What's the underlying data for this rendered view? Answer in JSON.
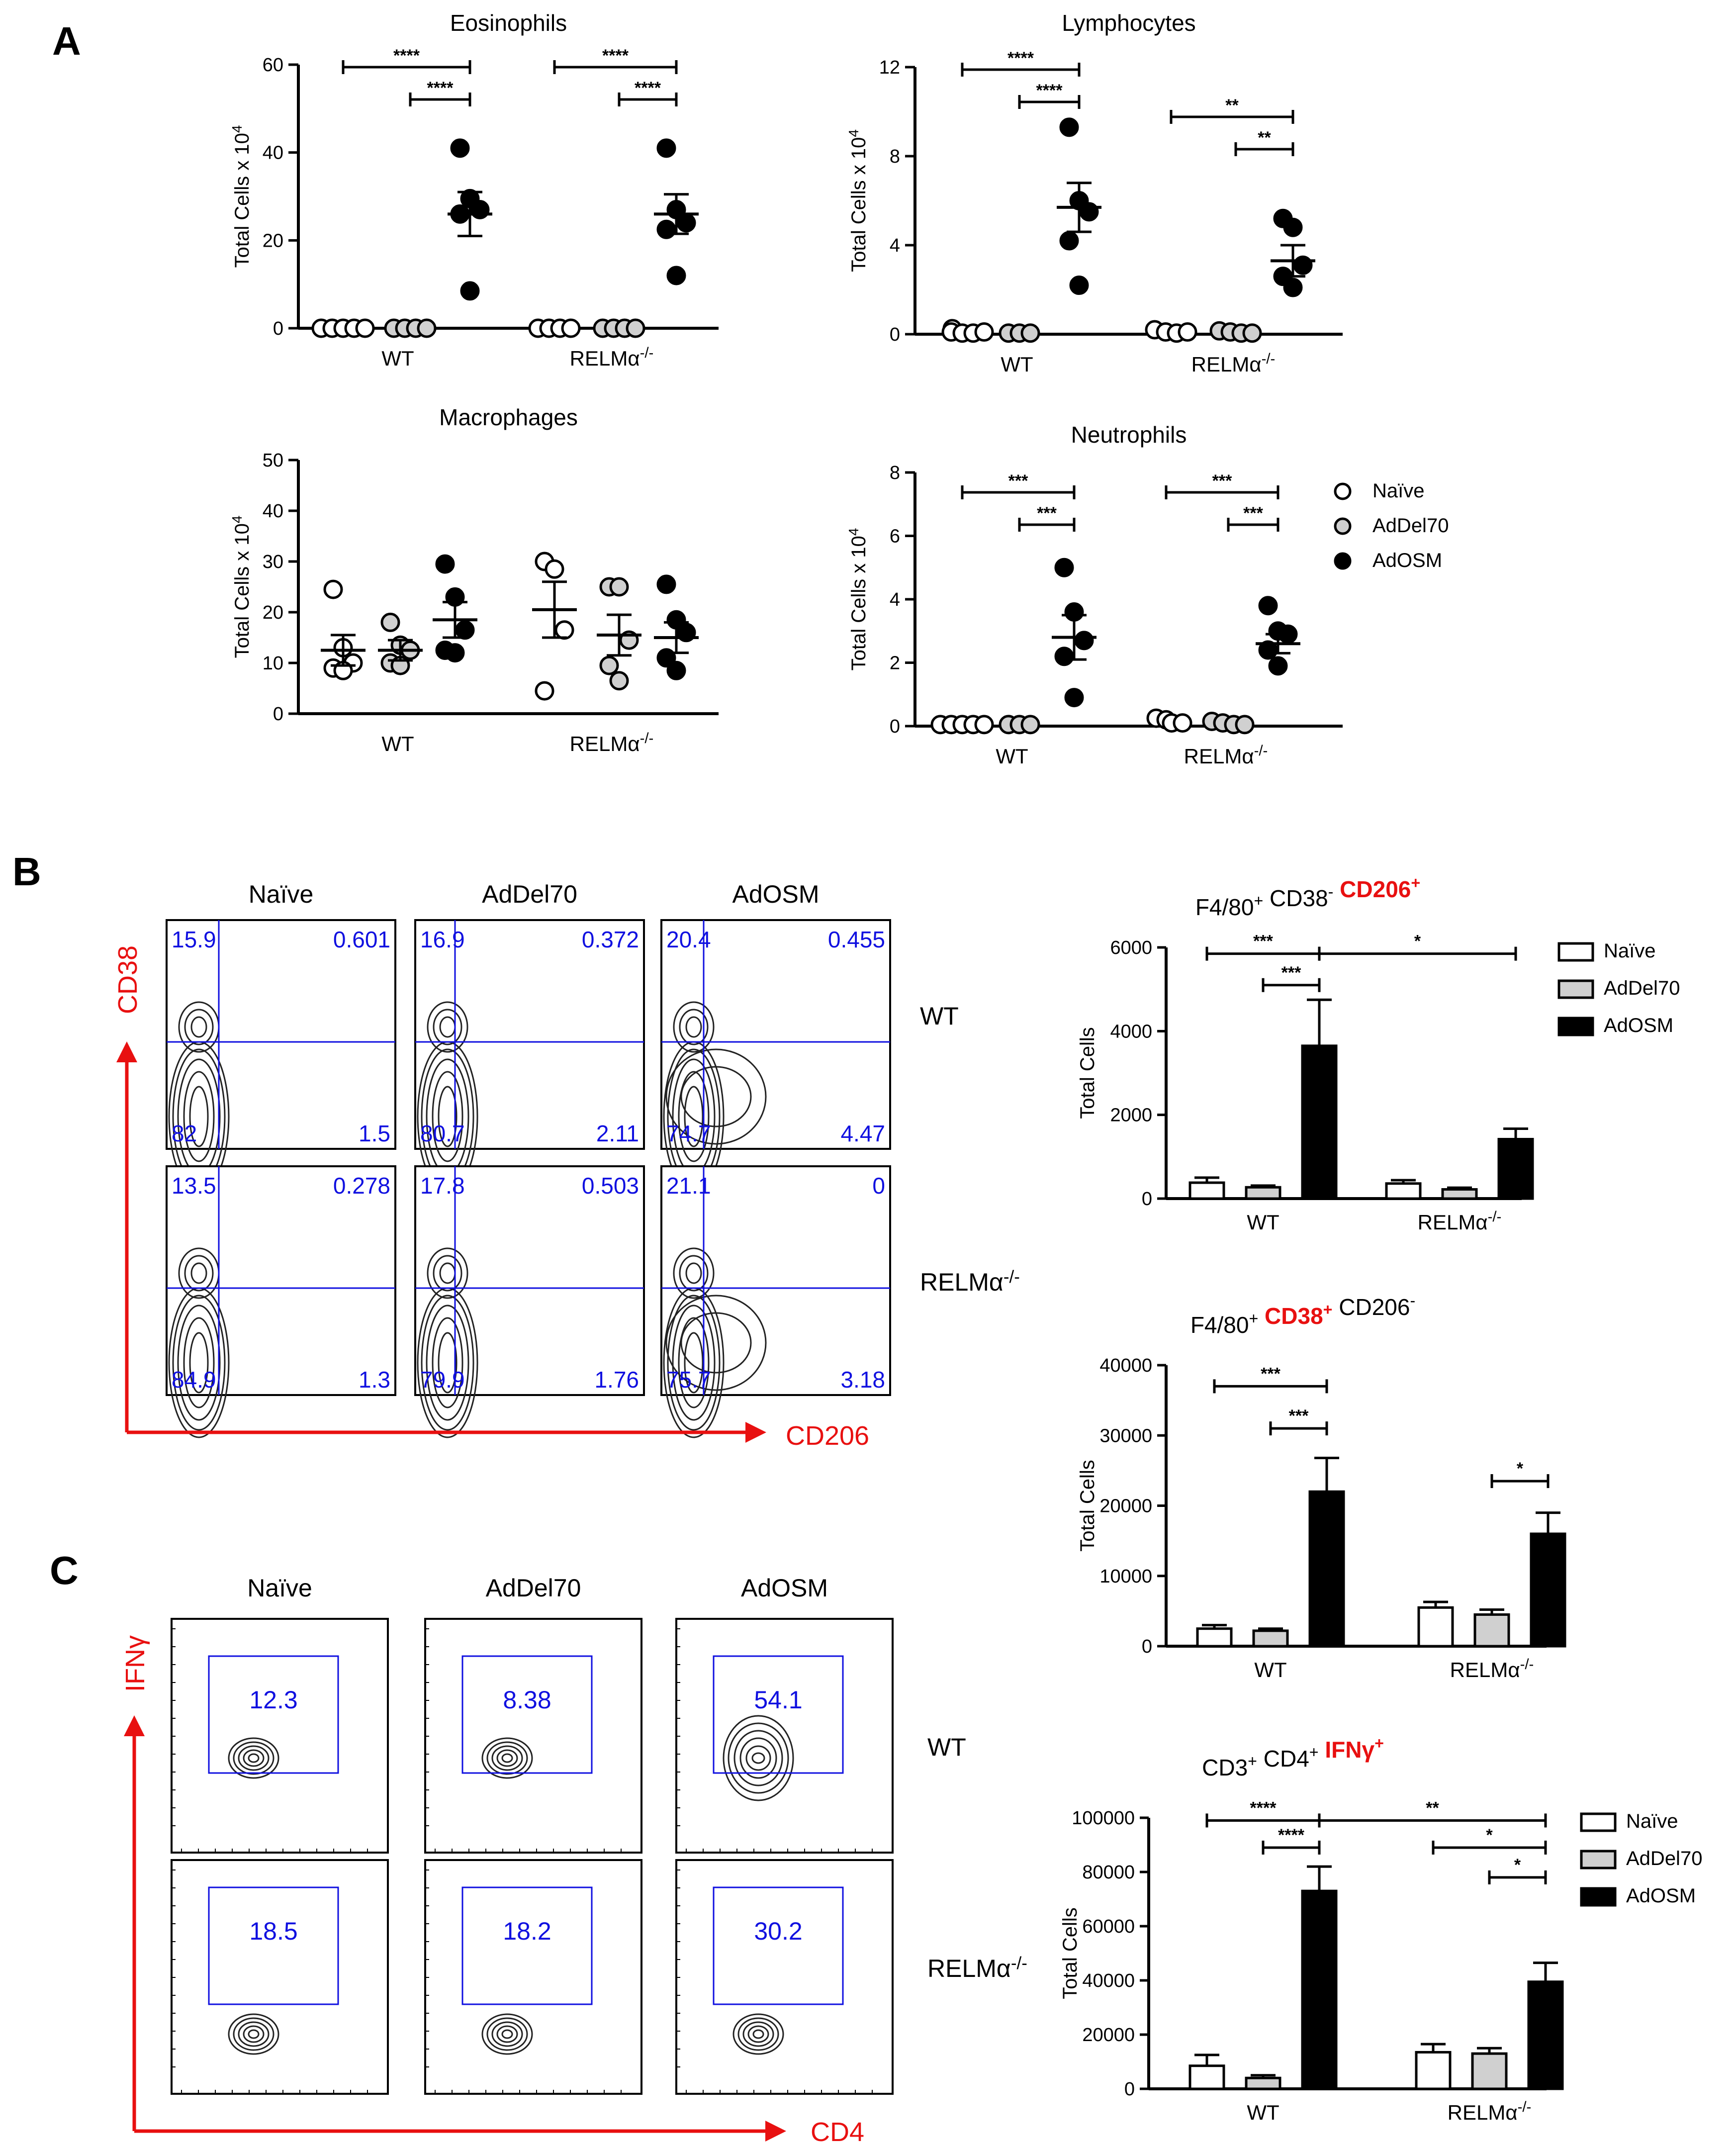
{
  "panel_labels": [
    "A",
    "B",
    "C"
  ],
  "colors": {
    "naive": "#ffffff",
    "addel70": "#d0d0d0",
    "adosm": "#000000",
    "flow_text": "#1010e0",
    "flow_axis": "#e81010"
  },
  "legend_A": [
    "Naïve",
    "AdDel70",
    "AdOSM"
  ],
  "chart_data": [
    {
      "id": "eosinophils",
      "type": "scatter",
      "title": "Eosinophils",
      "ylabel": "Total Cells x 10",
      "ylabel_sup": "4",
      "ylim": [
        0,
        60
      ],
      "yticks": [
        "0",
        "20",
        "40",
        "60"
      ],
      "groups": [
        "WT",
        "RELMα-/-"
      ],
      "series": [
        {
          "group": 0,
          "cond": "naive",
          "points": [
            0,
            0,
            0,
            0,
            0
          ],
          "mean": 0,
          "sem": 0
        },
        {
          "group": 0,
          "cond": "addel70",
          "points": [
            0,
            0,
            0,
            0
          ],
          "mean": 0,
          "sem": 0
        },
        {
          "group": 0,
          "cond": "adosm",
          "points": [
            41,
            29.5,
            27,
            26,
            8.5
          ],
          "mean": 26,
          "sem": 5
        },
        {
          "group": 1,
          "cond": "naive",
          "points": [
            0,
            0,
            0,
            0
          ],
          "mean": 0,
          "sem": 0
        },
        {
          "group": 1,
          "cond": "addel70",
          "points": [
            0,
            0,
            0,
            0
          ],
          "mean": 0,
          "sem": 0
        },
        {
          "group": 1,
          "cond": "adosm",
          "points": [
            41,
            27,
            24,
            22.5,
            12
          ],
          "mean": 26,
          "sem": 4.5
        }
      ],
      "sig": [
        {
          "group": 0,
          "from": 0,
          "to": 2,
          "label": "****",
          "level": 0
        },
        {
          "group": 0,
          "from": 1,
          "to": 2,
          "label": "****",
          "level": 1
        },
        {
          "group": 1,
          "from": 0,
          "to": 2,
          "label": "****",
          "level": 0
        },
        {
          "group": 1,
          "from": 1,
          "to": 2,
          "label": "****",
          "level": 1
        }
      ]
    },
    {
      "id": "lymphocytes",
      "type": "scatter",
      "title": "Lymphocytes",
      "ylabel": "Total Cells x 10",
      "ylabel_sup": "4",
      "ylim": [
        0,
        12
      ],
      "yticks": [
        "0",
        "4",
        "8",
        "12"
      ],
      "groups": [
        "WT",
        "RELMα-/-"
      ],
      "series": [
        {
          "group": 0,
          "cond": "naive",
          "points": [
            0.25,
            0.1,
            0.05,
            0.05,
            0.1
          ],
          "mean": 0.1,
          "sem": 0.05
        },
        {
          "group": 0,
          "cond": "addel70",
          "points": [
            0.05,
            0.05,
            0.05
          ],
          "mean": 0.05,
          "sem": 0
        },
        {
          "group": 0,
          "cond": "adosm",
          "points": [
            9.3,
            6.0,
            5.5,
            4.2,
            2.2
          ],
          "mean": 5.7,
          "sem": 1.1
        },
        {
          "group": 1,
          "cond": "naive",
          "points": [
            0.2,
            0.1,
            0.05,
            0.1
          ],
          "mean": 0.1,
          "sem": 0.05
        },
        {
          "group": 1,
          "cond": "addel70",
          "points": [
            0.15,
            0.1,
            0.05,
            0.05
          ],
          "mean": 0.1,
          "sem": 0.05
        },
        {
          "group": 1,
          "cond": "adosm",
          "points": [
            5.2,
            4.8,
            3.1,
            2.6,
            2.1
          ],
          "mean": 3.3,
          "sem": 0.7
        }
      ],
      "sig": [
        {
          "group": 0,
          "from": 0,
          "to": 2,
          "label": "****",
          "level": 0
        },
        {
          "group": 0,
          "from": 1,
          "to": 2,
          "label": "****",
          "level": 1
        },
        {
          "group": 1,
          "from": 0,
          "to": 2,
          "label": "**",
          "level": 0
        },
        {
          "group": 1,
          "from": 1,
          "to": 2,
          "label": "**",
          "level": 1
        }
      ]
    },
    {
      "id": "macrophages",
      "type": "scatter",
      "title": "Macrophages",
      "ylabel": "Total Cells x 10",
      "ylabel_sup": "4",
      "ylim": [
        0,
        50
      ],
      "yticks": [
        "0",
        "10",
        "20",
        "30",
        "40",
        "50"
      ],
      "groups": [
        "WT",
        "RELMα-/-"
      ],
      "series": [
        {
          "group": 0,
          "cond": "naive",
          "points": [
            24.5,
            13,
            10,
            9,
            8.5
          ],
          "mean": 12.5,
          "sem": 3
        },
        {
          "group": 0,
          "cond": "addel70",
          "points": [
            18,
            13.5,
            12.5,
            10,
            9.5
          ],
          "mean": 12.5,
          "sem": 2
        },
        {
          "group": 0,
          "cond": "adosm",
          "points": [
            29.5,
            23,
            16.5,
            12.5,
            12
          ],
          "mean": 18.5,
          "sem": 3.5
        },
        {
          "group": 1,
          "cond": "naive",
          "points": [
            30,
            28.5,
            16.5,
            4.5
          ],
          "mean": 20.5,
          "sem": 5.5
        },
        {
          "group": 1,
          "cond": "addel70",
          "points": [
            25,
            25,
            14.5,
            9.5,
            6.5
          ],
          "mean": 15.5,
          "sem": 4
        },
        {
          "group": 1,
          "cond": "adosm",
          "points": [
            25.5,
            18.5,
            16,
            11,
            8.5
          ],
          "mean": 15,
          "sem": 3
        }
      ],
      "sig": []
    },
    {
      "id": "neutrophils",
      "type": "scatter",
      "title": "Neutrophils",
      "ylabel": "Total Cells x 10",
      "ylabel_sup": "4",
      "ylim": [
        0,
        8
      ],
      "yticks": [
        "0",
        "2",
        "4",
        "6",
        "8"
      ],
      "groups": [
        "WT",
        "RELMα-/-"
      ],
      "series": [
        {
          "group": 0,
          "cond": "naive",
          "points": [
            0.05,
            0.05,
            0.05,
            0.05,
            0.05
          ],
          "mean": 0.05,
          "sem": 0
        },
        {
          "group": 0,
          "cond": "addel70",
          "points": [
            0.05,
            0.05,
            0.05
          ],
          "mean": 0.05,
          "sem": 0
        },
        {
          "group": 0,
          "cond": "adosm",
          "points": [
            5,
            3.6,
            2.7,
            2.2,
            0.9
          ],
          "mean": 2.8,
          "sem": 0.7
        },
        {
          "group": 1,
          "cond": "naive",
          "points": [
            0.25,
            0.2,
            0.1,
            0.1
          ],
          "mean": 0.15,
          "sem": 0.05
        },
        {
          "group": 1,
          "cond": "addel70",
          "points": [
            0.15,
            0.1,
            0.05,
            0.05
          ],
          "mean": 0.1,
          "sem": 0.03
        },
        {
          "group": 1,
          "cond": "adosm",
          "points": [
            3.8,
            3.0,
            2.9,
            2.4,
            1.9
          ],
          "mean": 2.6,
          "sem": 0.3
        }
      ],
      "sig": [
        {
          "group": 0,
          "from": 0,
          "to": 2,
          "label": "***",
          "level": 0
        },
        {
          "group": 0,
          "from": 1,
          "to": 2,
          "label": "***",
          "level": 1
        },
        {
          "group": 1,
          "from": 0,
          "to": 2,
          "label": "***",
          "level": 0
        },
        {
          "group": 1,
          "from": 1,
          "to": 2,
          "label": "***",
          "level": 1
        }
      ]
    },
    {
      "id": "cd206",
      "type": "bar",
      "title_parts": [
        "F4/80",
        "+",
        " CD38",
        "-",
        " CD206",
        "+"
      ],
      "ylabel": "Total Cells",
      "ylim": [
        0,
        6000
      ],
      "yticks": [
        "0",
        "2000",
        "4000",
        "6000"
      ],
      "groups": [
        "WT",
        "RELMα-/-"
      ],
      "series": [
        {
          "name": "Naïve",
          "values": [
            380,
            360
          ],
          "err": [
            120,
            80
          ]
        },
        {
          "name": "AdDel70",
          "values": [
            270,
            220
          ],
          "err": [
            40,
            40
          ]
        },
        {
          "name": "AdOSM",
          "values": [
            3650,
            1420
          ],
          "err": [
            1100,
            250
          ]
        }
      ],
      "sig": [
        {
          "g1": 0,
          "s1": 0,
          "g2": 0,
          "s2": 2,
          "label": "***",
          "y": 5850
        },
        {
          "g1": 0,
          "s1": 1,
          "g2": 0,
          "s2": 2,
          "label": "***",
          "y": 5100
        },
        {
          "g1": 0,
          "s1": 2,
          "g2": 1,
          "s2": 2,
          "label": "*",
          "y": 5850
        }
      ],
      "legend": [
        "Naïve",
        "AdDel70",
        "AdOSM"
      ]
    },
    {
      "id": "cd38",
      "type": "bar",
      "title_parts": [
        "F4/80",
        "+",
        " CD38",
        "+",
        " CD206",
        "-"
      ],
      "ylabel": "Total Cells",
      "ylim": [
        0,
        40000
      ],
      "yticks": [
        "0",
        "10000",
        "20000",
        "30000",
        "40000"
      ],
      "groups": [
        "WT",
        "RELMα-/-"
      ],
      "series": [
        {
          "name": "Naïve",
          "values": [
            2500,
            5500
          ],
          "err": [
            500,
            800
          ]
        },
        {
          "name": "AdDel70",
          "values": [
            2200,
            4500
          ],
          "err": [
            300,
            700
          ]
        },
        {
          "name": "AdOSM",
          "values": [
            22000,
            16000
          ],
          "err": [
            4800,
            3000
          ]
        }
      ],
      "sig": [
        {
          "g1": 0,
          "s1": 0,
          "g2": 0,
          "s2": 2,
          "label": "***",
          "y": 37000
        },
        {
          "g1": 0,
          "s1": 1,
          "g2": 0,
          "s2": 2,
          "label": "***",
          "y": 31000
        },
        {
          "g1": 1,
          "s1": 1,
          "g2": 1,
          "s2": 2,
          "label": "*",
          "y": 23500
        }
      ]
    },
    {
      "id": "ifng",
      "type": "bar",
      "title_parts": [
        "CD3",
        "+",
        " CD4",
        "+",
        " IFNγ",
        "+"
      ],
      "ylabel": "Total Cells",
      "ylim": [
        0,
        100000
      ],
      "yticks": [
        "0",
        "20000",
        "40000",
        "60000",
        "80000",
        "100000"
      ],
      "groups": [
        "WT",
        "RELMα-/-"
      ],
      "series": [
        {
          "name": "Naïve",
          "values": [
            8500,
            13500
          ],
          "err": [
            4000,
            3000
          ]
        },
        {
          "name": "AdDel70",
          "values": [
            4000,
            13000
          ],
          "err": [
            1000,
            2000
          ]
        },
        {
          "name": "AdOSM",
          "values": [
            73000,
            39500
          ],
          "err": [
            9000,
            7000
          ]
        }
      ],
      "sig": [
        {
          "g1": 0,
          "s1": 0,
          "g2": 0,
          "s2": 2,
          "label": "****",
          "y": 99000
        },
        {
          "g1": 0,
          "s1": 1,
          "g2": 0,
          "s2": 2,
          "label": "****",
          "y": 89000
        },
        {
          "g1": 0,
          "s1": 2,
          "g2": 1,
          "s2": 2,
          "label": "**",
          "y": 99000
        },
        {
          "g1": 1,
          "s1": 0,
          "g2": 1,
          "s2": 2,
          "label": "*",
          "y": 89000
        },
        {
          "g1": 1,
          "s1": 1,
          "g2": 1,
          "s2": 2,
          "label": "*",
          "y": 78000
        }
      ],
      "legend": [
        "Naïve",
        "AdDel70",
        "AdOSM"
      ]
    }
  ],
  "flow_B": {
    "columns": [
      "Naïve",
      "AdDel70",
      "AdOSM"
    ],
    "rows": [
      "WT",
      "RELMα-/-"
    ],
    "y_axis": "CD38",
    "x_axis": "CD206",
    "quadrants": [
      [
        [
          "15.9",
          "0.601",
          "82",
          "1.5"
        ],
        [
          "16.9",
          "0.372",
          "80.7",
          "2.11"
        ],
        [
          "20.4",
          "0.455",
          "74.7",
          "4.47"
        ]
      ],
      [
        [
          "13.5",
          "0.278",
          "84.9",
          "1.3"
        ],
        [
          "17.8",
          "0.503",
          "79.9",
          "1.76"
        ],
        [
          "21.1",
          "0",
          "75.7",
          "3.18"
        ]
      ]
    ]
  },
  "flow_C": {
    "columns": [
      "Naïve",
      "AdDel70",
      "AdOSM"
    ],
    "rows": [
      "WT",
      "RELMα-/-"
    ],
    "y_axis": "IFNγ",
    "x_axis": "CD4",
    "gates": [
      [
        "12.3",
        "8.38",
        "54.1"
      ],
      [
        "18.5",
        "18.2",
        "30.2"
      ]
    ]
  }
}
